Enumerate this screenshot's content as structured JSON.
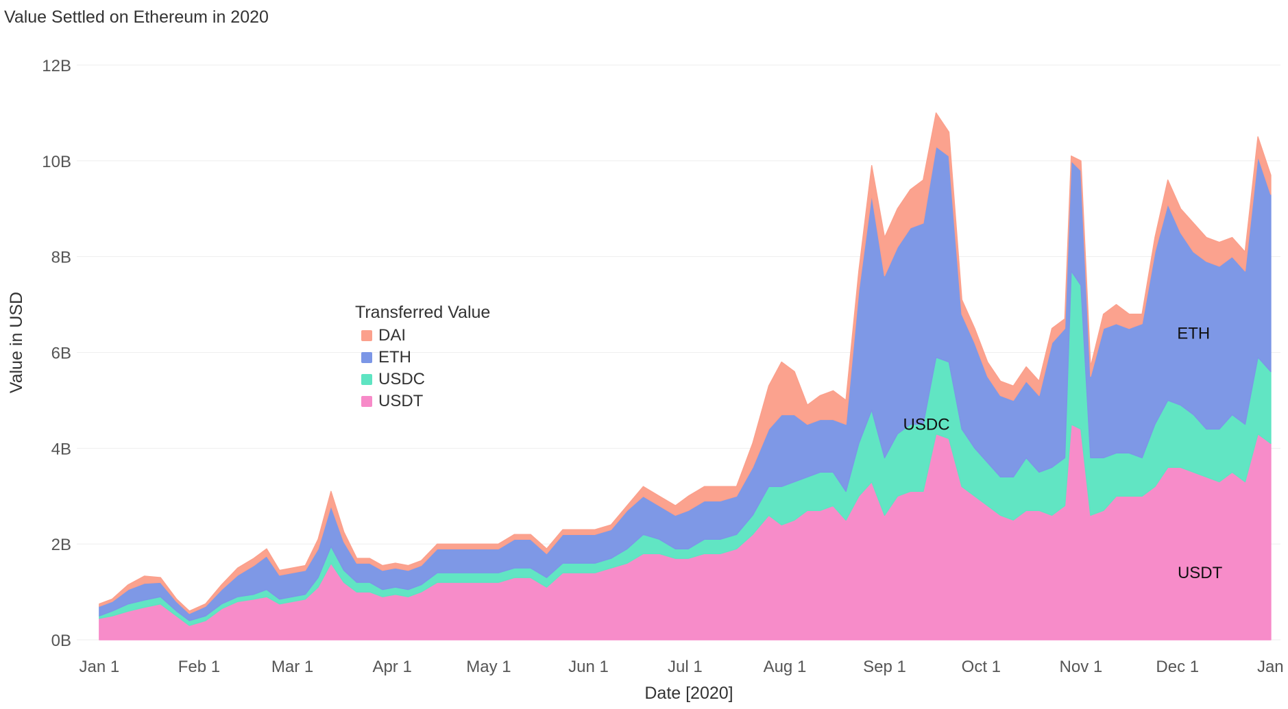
{
  "chart_data": {
    "type": "area",
    "stacked": true,
    "title": "Value Settled on Ethereum in 2020",
    "xlabel": "Date [2020]",
    "ylabel": "Value in USD",
    "x_tick_labels": [
      "Jan 1",
      "Feb 1",
      "Mar 1",
      "Apr 1",
      "May 1",
      "Jun 1",
      "Jul 1",
      "Aug 1",
      "Sep 1",
      "Oct 1",
      "Nov 1",
      "Dec 1",
      "Jan 1"
    ],
    "x_ticks": [
      "2020-01-01",
      "2020-02-01",
      "2020-03-01",
      "2020-04-01",
      "2020-05-01",
      "2020-06-01",
      "2020-07-01",
      "2020-08-01",
      "2020-09-01",
      "2020-10-01",
      "2020-11-01",
      "2020-12-01",
      "2021-01-01"
    ],
    "xlim": [
      "2019-12-25",
      "2021-01-02"
    ],
    "y_tick_labels": [
      "0B",
      "2B",
      "4B",
      "6B",
      "8B",
      "10B",
      "12B"
    ],
    "y_ticks": [
      0,
      2,
      4,
      6,
      8,
      10,
      12
    ],
    "y_unit": "billions USD",
    "ylim": [
      -0.2,
      12.5
    ],
    "grid": true,
    "legend": {
      "title": "Transferred Value",
      "placement": "center-left",
      "order": [
        "DAI",
        "ETH",
        "USDC",
        "USDT"
      ]
    },
    "x": [
      "2020-01-01",
      "2020-01-05",
      "2020-01-10",
      "2020-01-15",
      "2020-01-20",
      "2020-01-25",
      "2020-01-29",
      "2020-02-03",
      "2020-02-08",
      "2020-02-13",
      "2020-02-18",
      "2020-02-22",
      "2020-02-26",
      "2020-03-01",
      "2020-03-05",
      "2020-03-09",
      "2020-03-13",
      "2020-03-17",
      "2020-03-21",
      "2020-03-25",
      "2020-03-29",
      "2020-04-02",
      "2020-04-06",
      "2020-04-10",
      "2020-04-15",
      "2020-04-20",
      "2020-04-25",
      "2020-04-29",
      "2020-05-04",
      "2020-05-09",
      "2020-05-14",
      "2020-05-19",
      "2020-05-24",
      "2020-05-29",
      "2020-06-03",
      "2020-06-08",
      "2020-06-13",
      "2020-06-18",
      "2020-06-23",
      "2020-06-28",
      "2020-07-02",
      "2020-07-07",
      "2020-07-12",
      "2020-07-17",
      "2020-07-22",
      "2020-07-27",
      "2020-07-31",
      "2020-08-04",
      "2020-08-08",
      "2020-08-12",
      "2020-08-16",
      "2020-08-20",
      "2020-08-24",
      "2020-08-28",
      "2020-09-01",
      "2020-09-05",
      "2020-09-09",
      "2020-09-13",
      "2020-09-17",
      "2020-09-21",
      "2020-09-25",
      "2020-09-29",
      "2020-10-03",
      "2020-10-07",
      "2020-10-11",
      "2020-10-15",
      "2020-10-19",
      "2020-10-23",
      "2020-10-27",
      "2020-10-29",
      "2020-11-01",
      "2020-11-04",
      "2020-11-08",
      "2020-11-12",
      "2020-11-16",
      "2020-11-20",
      "2020-11-24",
      "2020-11-28",
      "2020-12-02",
      "2020-12-06",
      "2020-12-10",
      "2020-12-14",
      "2020-12-18",
      "2020-12-22",
      "2020-12-26",
      "2020-12-30"
    ],
    "series": [
      {
        "name": "USDT",
        "color": "#f78ac8",
        "values": [
          0.45,
          0.5,
          0.6,
          0.68,
          0.75,
          0.5,
          0.3,
          0.4,
          0.65,
          0.8,
          0.85,
          0.9,
          0.75,
          0.8,
          0.85,
          1.1,
          1.6,
          1.2,
          1.0,
          1.0,
          0.9,
          0.95,
          0.9,
          1.0,
          1.2,
          1.2,
          1.2,
          1.2,
          1.2,
          1.3,
          1.3,
          1.1,
          1.4,
          1.4,
          1.4,
          1.5,
          1.6,
          1.8,
          1.8,
          1.7,
          1.7,
          1.8,
          1.8,
          1.9,
          2.2,
          2.6,
          2.4,
          2.5,
          2.7,
          2.7,
          2.8,
          2.5,
          3.0,
          3.3,
          2.6,
          3.0,
          3.1,
          3.1,
          4.3,
          4.2,
          3.2,
          3.0,
          2.8,
          2.6,
          2.5,
          2.7,
          2.7,
          2.6,
          2.8,
          4.5,
          4.4,
          2.6,
          2.7,
          3.0,
          3.0,
          3.0,
          3.2,
          3.6,
          3.6,
          3.5,
          3.4,
          3.3,
          3.5,
          3.3,
          4.3,
          4.1
        ]
      },
      {
        "name": "USDC",
        "color": "#5ee4c2",
        "values": [
          0.05,
          0.1,
          0.15,
          0.15,
          0.15,
          0.1,
          0.1,
          0.1,
          0.1,
          0.1,
          0.1,
          0.15,
          0.1,
          0.1,
          0.1,
          0.2,
          0.35,
          0.25,
          0.2,
          0.2,
          0.15,
          0.15,
          0.15,
          0.15,
          0.2,
          0.2,
          0.2,
          0.2,
          0.2,
          0.2,
          0.2,
          0.2,
          0.2,
          0.2,
          0.2,
          0.2,
          0.3,
          0.4,
          0.3,
          0.2,
          0.2,
          0.3,
          0.3,
          0.3,
          0.4,
          0.6,
          0.8,
          0.8,
          0.7,
          0.8,
          0.7,
          0.6,
          1.1,
          1.5,
          1.2,
          1.3,
          1.4,
          1.4,
          1.6,
          1.6,
          1.2,
          1.0,
          0.9,
          0.8,
          0.9,
          1.1,
          0.8,
          1.0,
          1.0,
          3.2,
          3.0,
          1.2,
          1.1,
          0.9,
          0.9,
          0.8,
          1.3,
          1.4,
          1.3,
          1.2,
          1.0,
          1.1,
          1.2,
          1.2,
          1.6,
          1.5
        ]
      },
      {
        "name": "ETH",
        "color": "#7b96e6",
        "values": [
          0.2,
          0.2,
          0.3,
          0.35,
          0.3,
          0.2,
          0.15,
          0.2,
          0.3,
          0.45,
          0.6,
          0.7,
          0.5,
          0.5,
          0.5,
          0.6,
          0.85,
          0.6,
          0.4,
          0.4,
          0.4,
          0.4,
          0.4,
          0.4,
          0.5,
          0.5,
          0.5,
          0.5,
          0.5,
          0.6,
          0.6,
          0.5,
          0.6,
          0.6,
          0.6,
          0.6,
          0.8,
          0.8,
          0.7,
          0.7,
          0.8,
          0.8,
          0.8,
          0.8,
          1.0,
          1.2,
          1.5,
          1.4,
          1.1,
          1.1,
          1.1,
          1.4,
          3.2,
          4.5,
          3.8,
          3.9,
          4.1,
          4.2,
          4.4,
          4.3,
          2.4,
          2.2,
          1.8,
          1.7,
          1.6,
          1.6,
          1.6,
          2.6,
          2.7,
          2.3,
          2.4,
          1.7,
          2.7,
          2.7,
          2.6,
          2.8,
          3.6,
          4.1,
          3.6,
          3.4,
          3.5,
          3.4,
          3.3,
          3.2,
          4.2,
          3.7
        ]
      },
      {
        "name": "DAI",
        "color": "#fba08c",
        "values": [
          0.05,
          0.05,
          0.1,
          0.15,
          0.1,
          0.05,
          0.05,
          0.05,
          0.1,
          0.15,
          0.15,
          0.15,
          0.1,
          0.1,
          0.1,
          0.2,
          0.3,
          0.2,
          0.1,
          0.1,
          0.1,
          0.1,
          0.1,
          0.1,
          0.1,
          0.1,
          0.1,
          0.1,
          0.1,
          0.1,
          0.1,
          0.1,
          0.1,
          0.1,
          0.1,
          0.1,
          0.1,
          0.2,
          0.2,
          0.2,
          0.3,
          0.3,
          0.3,
          0.2,
          0.5,
          0.9,
          1.1,
          0.9,
          0.4,
          0.5,
          0.6,
          0.5,
          0.4,
          0.6,
          0.8,
          0.8,
          0.8,
          0.9,
          0.7,
          0.5,
          0.3,
          0.3,
          0.3,
          0.3,
          0.3,
          0.3,
          0.3,
          0.3,
          0.2,
          0.1,
          0.2,
          0.2,
          0.3,
          0.4,
          0.3,
          0.2,
          0.3,
          0.5,
          0.5,
          0.6,
          0.5,
          0.5,
          0.4,
          0.4,
          0.4,
          0.4
        ]
      }
    ],
    "annotations": [
      {
        "text": "USDC",
        "x": "2020-09-14",
        "y": 4.5
      },
      {
        "text": "ETH",
        "x": "2020-12-06",
        "y": 6.4
      },
      {
        "text": "USDT",
        "x": "2020-12-08",
        "y": 1.4
      }
    ]
  }
}
